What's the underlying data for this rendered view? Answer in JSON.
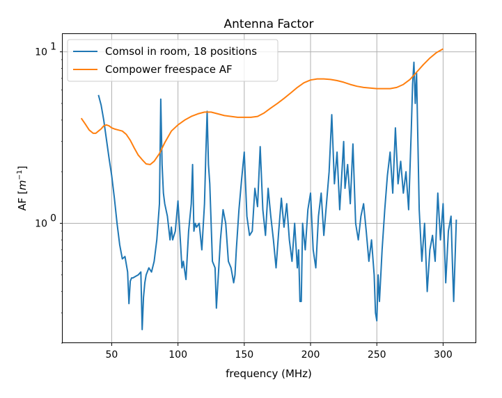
{
  "chart_data": {
    "type": "line",
    "title": "Antenna Factor",
    "xlabel": "frequency (MHz)",
    "ylabel": "AF [m^-1]",
    "ylabel_parts": {
      "base": "AF [",
      "var": "m",
      "exp": "−1",
      "close": "]"
    },
    "xlim": [
      13,
      325
    ],
    "ylim": [
      0.2,
      12.7
    ],
    "yscale": "log",
    "grid": true,
    "legend_position": "upper-left",
    "xticks": [
      50,
      100,
      150,
      200,
      250,
      300
    ],
    "xtick_labels": [
      "50",
      "100",
      "150",
      "200",
      "250",
      "300"
    ],
    "yticks": [
      1,
      10
    ],
    "ytick_labels": [
      {
        "base": "10",
        "exp": "0"
      },
      {
        "base": "10",
        "exp": "1"
      }
    ],
    "series": [
      {
        "name": "Comsol in room, 18 positions",
        "color": "#1f77b4",
        "x": [
          40,
          42,
          44,
          46,
          48,
          50,
          52,
          54,
          56,
          58,
          60,
          62,
          63,
          64,
          65,
          66,
          68,
          70,
          72,
          73,
          74,
          75,
          76,
          78,
          80,
          82,
          84,
          86,
          87,
          88,
          89,
          90,
          92,
          94,
          95,
          96,
          97,
          98,
          100,
          102,
          103,
          104,
          106,
          108,
          110,
          111,
          112,
          113,
          114,
          116,
          118,
          120,
          121,
          122,
          123,
          124,
          126,
          128,
          129,
          130,
          132,
          134,
          136,
          138,
          140,
          142,
          143,
          144,
          146,
          148,
          150,
          152,
          154,
          156,
          158,
          160,
          162,
          164,
          166,
          168,
          170,
          172,
          174,
          176,
          178,
          180,
          182,
          184,
          186,
          188,
          190,
          191,
          192,
          193,
          194,
          196,
          198,
          200,
          202,
          204,
          206,
          208,
          210,
          212,
          214,
          216,
          218,
          220,
          222,
          224,
          225,
          226,
          228,
          230,
          232,
          234,
          236,
          238,
          240,
          242,
          244,
          246,
          248,
          249,
          250,
          251,
          252,
          254,
          256,
          258,
          260,
          262,
          264,
          266,
          268,
          270,
          272,
          274,
          276,
          277,
          278,
          279,
          280,
          282,
          284,
          286,
          288,
          290,
          292,
          294,
          296,
          298,
          300,
          302,
          304,
          306,
          307,
          308,
          310
        ],
        "y": [
          5.6,
          4.9,
          4.0,
          3.1,
          2.4,
          1.9,
          1.4,
          1.0,
          0.75,
          0.62,
          0.64,
          0.52,
          0.34,
          0.46,
          0.48,
          0.48,
          0.49,
          0.5,
          0.52,
          0.24,
          0.37,
          0.45,
          0.5,
          0.55,
          0.52,
          0.6,
          0.8,
          1.3,
          5.3,
          2.2,
          1.5,
          1.3,
          1.1,
          0.8,
          0.95,
          0.8,
          0.85,
          0.9,
          1.35,
          0.75,
          0.55,
          0.6,
          0.47,
          0.9,
          1.3,
          2.2,
          0.9,
          1.0,
          0.95,
          1.0,
          0.7,
          1.3,
          2.5,
          4.5,
          2.2,
          1.7,
          0.6,
          0.55,
          0.32,
          0.44,
          0.8,
          1.2,
          1.0,
          0.6,
          0.55,
          0.45,
          0.5,
          0.7,
          1.2,
          1.8,
          2.6,
          1.1,
          0.85,
          0.9,
          1.6,
          1.25,
          2.8,
          1.2,
          0.85,
          1.6,
          1.1,
          0.8,
          0.55,
          0.9,
          1.4,
          0.95,
          1.3,
          0.8,
          0.6,
          1.0,
          0.55,
          0.7,
          0.35,
          0.35,
          1.0,
          0.7,
          1.2,
          1.5,
          0.7,
          0.55,
          1.1,
          1.5,
          0.85,
          1.3,
          2.0,
          4.3,
          1.7,
          2.6,
          1.2,
          2.2,
          3.0,
          1.6,
          2.2,
          1.3,
          2.9,
          1.0,
          0.8,
          1.1,
          1.3,
          0.9,
          0.6,
          0.8,
          0.5,
          0.3,
          0.27,
          0.5,
          0.35,
          0.7,
          1.2,
          1.9,
          2.6,
          1.5,
          3.6,
          1.7,
          2.3,
          1.5,
          2.0,
          1.2,
          3.5,
          6.5,
          8.7,
          5.0,
          7.5,
          1.2,
          0.6,
          1.0,
          0.4,
          0.7,
          0.85,
          0.6,
          1.5,
          0.8,
          1.3,
          0.45,
          0.9,
          1.1,
          0.6,
          0.35,
          1.05
        ]
      },
      {
        "name": "Compower freespace AF",
        "color": "#ff7f0e",
        "x": [
          27,
          30,
          33,
          36,
          38,
          40,
          42,
          44,
          46,
          48,
          50,
          52,
          55,
          58,
          61,
          64,
          67,
          70,
          73,
          76,
          79,
          82,
          86,
          90,
          95,
          100,
          105,
          110,
          115,
          120,
          125,
          130,
          135,
          140,
          145,
          150,
          155,
          160,
          165,
          170,
          175,
          180,
          185,
          190,
          195,
          200,
          205,
          210,
          215,
          220,
          225,
          230,
          235,
          240,
          245,
          250,
          255,
          260,
          265,
          270,
          275,
          280,
          285,
          290,
          295,
          300
        ],
        "y": [
          4.1,
          3.8,
          3.5,
          3.35,
          3.35,
          3.45,
          3.55,
          3.7,
          3.75,
          3.7,
          3.6,
          3.55,
          3.5,
          3.45,
          3.3,
          3.05,
          2.75,
          2.5,
          2.35,
          2.22,
          2.2,
          2.3,
          2.55,
          2.95,
          3.45,
          3.75,
          4.0,
          4.2,
          4.35,
          4.45,
          4.45,
          4.35,
          4.25,
          4.2,
          4.15,
          4.15,
          4.15,
          4.2,
          4.4,
          4.7,
          5.0,
          5.35,
          5.75,
          6.2,
          6.6,
          6.85,
          6.95,
          6.95,
          6.9,
          6.8,
          6.65,
          6.45,
          6.3,
          6.2,
          6.15,
          6.1,
          6.1,
          6.1,
          6.2,
          6.45,
          6.9,
          7.6,
          8.4,
          9.2,
          9.9,
          10.4
        ]
      }
    ]
  }
}
